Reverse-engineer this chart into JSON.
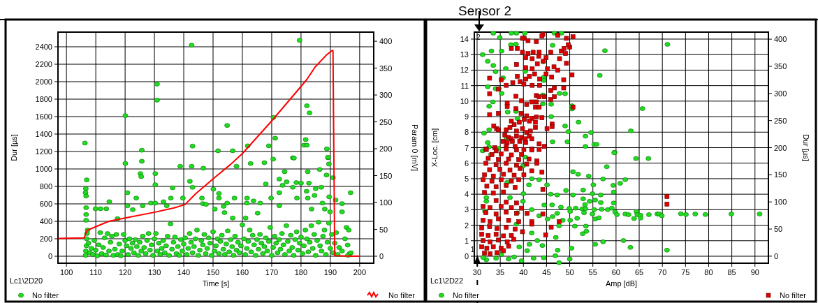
{
  "chart_data": [
    {
      "type": "scatter",
      "xlabel": "Time [s]",
      "ylabel": "Dur [µs]",
      "y2label": "Param 0 [mV]",
      "xlim": [
        97.1,
        204.8
      ],
      "ylim": [
        -80,
        2568
      ],
      "y2lim": [
        -13,
        417
      ],
      "xticks": [
        100,
        110,
        120,
        130,
        140,
        150,
        160,
        170,
        180,
        190,
        200
      ],
      "yticks": [
        0,
        200,
        400,
        600,
        800,
        1000,
        1200,
        1400,
        1600,
        1800,
        2000,
        2200,
        2400
      ],
      "y2ticks": [
        0,
        50,
        100,
        150,
        200,
        250,
        300,
        350,
        400
      ],
      "grid": true,
      "legend": "bottom",
      "annotations": [
        "Lc1\\2D20"
      ],
      "series": [
        {
          "name": "No filter",
          "type": "scatter",
          "marker": "circle",
          "color": "#1fdd1f",
          "x": [
            106.3,
            120.1,
            125.7,
            130.9,
            130.9,
            142.7,
            143,
            151.7,
            154.8,
            156.7,
            161.8,
            169,
            170.6,
            171.2,
            179.5,
            177.2,
            181,
            182,
            181.6,
            182,
            182.9,
            188.8,
            189.2,
            120.1,
            125.7,
            125.2,
            125.5,
            130.3,
            130.3,
            106.9,
            106.6,
            106.5,
            106.7,
            106.7,
            106.7,
            106.7,
            109.9,
            111.6,
            113.6,
            114.6,
            117.4,
            120.8,
            120.8,
            122.6,
            123.8,
            126,
            128.8,
            130.3,
            133.1,
            134.2,
            135.6,
            136.2,
            138.8,
            139.7,
            142.7,
            142.1,
            143,
            146.7,
            146.2,
            146.5,
            147.6,
            150.1,
            152,
            152,
            150.6,
            153.6,
            153.9,
            154.8,
            157.3,
            158,
            156.7,
            161.1,
            161.6,
            161.5,
            162.8,
            163.8,
            166.1,
            165.2,
            167.5,
            168,
            170.5,
            169.8,
            172.6,
            172.6,
            174.4,
            172.6,
            175.1,
            173.7,
            177.6,
            177.2,
            178.4,
            178.6,
            180,
            182.3,
            182.7,
            181.9,
            182.3,
            183.6,
            184.6,
            185,
            186.4,
            186.9,
            187.3,
            188.1,
            188.7,
            189.2,
            189.5,
            189.6,
            189.9,
            190.9,
            191.8,
            194,
            194,
            196.9,
            195.5,
            196.3,
            195.9,
            196.6,
            106.5,
            106.6,
            106.8,
            106.9,
            107,
            107.2,
            107.5,
            108,
            108.5,
            109,
            109.5,
            110,
            110.5,
            111,
            111.5,
            112,
            112.5,
            113,
            113.5,
            114,
            114.5,
            115,
            115.5,
            116,
            116.5,
            117,
            117.5,
            118,
            118.5,
            119,
            119.5,
            120,
            120.5,
            121,
            121.5,
            122,
            122.5,
            123,
            123.5,
            124,
            124.5,
            125,
            125.5,
            126,
            126.5,
            127,
            127.5,
            128,
            128.5,
            129,
            129.5,
            130,
            130.5,
            131,
            131.5,
            132,
            132.5,
            133,
            133.5,
            134,
            134.5,
            135,
            135.5,
            136,
            136.5,
            137,
            137.5,
            138,
            138.5,
            139,
            139.5,
            140,
            140.5,
            141,
            141.5,
            142,
            142.5,
            143,
            143.5,
            144,
            144.5,
            145,
            145.5,
            146,
            146.5,
            147,
            147.5,
            148,
            148.5,
            149,
            149.5,
            150,
            150.5,
            151,
            151.5,
            152,
            152.5,
            153,
            153.5,
            154,
            154.5,
            155,
            155.5,
            156,
            156.5,
            157,
            157.5,
            158,
            158.5,
            159,
            159.5,
            160,
            160.5,
            161,
            161.5,
            162,
            162.5,
            163,
            163.5,
            164,
            164.5,
            165,
            165.5,
            166,
            166.5,
            167,
            167.5,
            168,
            168.5,
            169,
            169.5,
            170,
            170.5,
            171,
            171.5,
            172,
            172.5,
            173,
            173.5,
            174,
            174.5,
            175,
            175.5,
            176,
            176.5,
            177,
            177.5,
            178,
            178.5,
            179,
            179.5,
            180,
            180.5,
            181,
            181.5,
            182,
            182.5,
            183,
            183.5,
            184,
            184.5,
            185,
            185.5,
            186,
            186.5,
            187,
            187.5,
            188,
            188.5,
            189,
            189.5,
            190,
            190.5,
            191,
            191.5,
            192,
            192.5,
            193,
            194,
            195,
            196,
            197
          ],
          "values": [
            1297,
            1611,
            1215,
            1973,
            1789,
            2419,
            1262,
            1209,
            1499,
            1209,
            1265,
            1265,
            1590,
            1353,
            2475,
            1128,
            1272,
            1272,
            1337,
            1724,
            1643,
            1231,
            1128,
            1063,
            1088,
            947,
            912,
            947,
            819,
            875,
            775,
            728,
            690,
            556,
            478,
            412,
            544,
            544,
            544,
            625,
            431,
            728,
            578,
            534,
            666,
            578,
            609,
            609,
            625,
            578,
            666,
            784,
            1031,
            666,
            1031,
            859,
            790,
            1009,
            666,
            603,
            594,
            769,
            719,
            666,
            541,
            572,
            500,
            609,
            666,
            1031,
            438,
            438,
            666,
            609,
            1063,
            634,
            609,
            494,
            1072,
            828,
            1113,
            666,
            578,
            728,
            969,
            884,
            853,
            813,
            1125,
            790,
            844,
            666,
            838,
            969,
            838,
            744,
            666,
            541,
            697,
            775,
            994,
            790,
            609,
            541,
            931,
            1134,
            1056,
            681,
            509,
            900,
            644,
            603,
            509,
            728,
            331,
            300,
            128,
            31,
            10,
            60,
            120,
            200,
            260,
            300,
            150,
            40,
            90,
            20,
            180,
            70,
            5,
            130,
            270,
            30,
            100,
            210,
            15,
            260,
            60,
            160,
            230,
            10,
            80,
            250,
            20,
            140,
            5,
            60,
            250,
            180,
            120,
            20,
            200,
            90,
            150,
            40,
            190,
            110,
            10,
            160,
            60,
            230,
            100,
            30,
            180,
            260,
            70,
            130,
            10,
            200,
            260,
            60,
            150,
            20,
            90,
            180,
            40,
            120,
            230,
            10,
            370,
            80,
            160,
            220,
            30,
            110,
            10,
            190,
            60,
            140,
            210,
            20,
            90,
            260,
            160,
            40,
            110,
            200,
            300,
            10,
            70,
            180,
            130,
            250,
            30,
            90,
            210,
            150,
            10,
            280,
            60,
            120,
            200,
            30,
            170,
            240,
            80,
            20,
            140,
            290,
            50,
            190,
            110,
            10,
            230,
            70,
            160,
            40,
            120,
            360,
            200,
            20,
            90,
            170,
            300,
            50,
            240,
            130,
            10,
            190,
            80,
            250,
            150,
            30,
            110,
            210,
            60,
            170,
            330,
            10,
            100,
            230,
            150,
            40,
            190,
            80,
            260,
            130,
            20,
            350,
            170,
            60,
            240,
            100,
            10,
            190,
            280,
            70,
            150,
            220,
            30,
            120,
            300,
            200,
            50,
            160,
            350,
            90,
            250,
            10,
            180,
            390,
            120,
            60,
            230,
            300,
            20,
            160,
            380,
            90,
            250,
            40,
            150,
            270,
            20,
            100,
            60,
            200,
            10,
            40
          ]
        },
        {
          "name": "No filter",
          "type": "line",
          "axis": "y2",
          "marker": "none",
          "color": "#ff0000",
          "x": [
            97.2,
            106,
            107,
            114.4,
            120,
            130.2,
            136.7,
            140.4,
            144,
            150,
            156,
            160,
            170.2,
            180,
            182,
            184.8,
            188.6,
            190.6,
            190.9,
            191.5,
            200
          ],
          "values": [
            33,
            34,
            48,
            65,
            71,
            82,
            90,
            96,
            116,
            144,
            171,
            191,
            253,
            316,
            329,
            352,
            374,
            383,
            382,
            1,
            0
          ]
        }
      ]
    },
    {
      "type": "scatter",
      "title": "Sensor 2",
      "xlabel": "Amp [dB]",
      "ylabel": "X-Loc. [cm]",
      "y2label": "Dur [µs]",
      "xlim": [
        29.4,
        92.9
      ],
      "ylim": [
        -0.45,
        14.45
      ],
      "y2lim": [
        -13,
        413
      ],
      "xticks": [
        30,
        35,
        40,
        45,
        50,
        55,
        60,
        65,
        70,
        75,
        80,
        85,
        90
      ],
      "yticks": [
        0,
        1,
        2,
        3,
        4,
        5,
        6,
        7,
        8,
        9,
        10,
        11,
        12,
        13,
        14
      ],
      "y2ticks": [
        0,
        50,
        100,
        150,
        200,
        250,
        300,
        350,
        400
      ],
      "grid": true,
      "legend": "bottom",
      "annotations": [
        "Lc1\\2D22",
        {
          "text": "1",
          "x": 30.2,
          "y": 0.35
        },
        "2"
      ],
      "series": [
        {
          "name": "No filter",
          "type": "scatter",
          "marker": "circle",
          "color": "#1fdd1f",
          "x": [
            33.5,
            31.2,
            33.1,
            35.3,
            32.3,
            33.5,
            34,
            36.2,
            35.6,
            32.3,
            34,
            34.7,
            32.6,
            33.4,
            35.3,
            37.3,
            38.4,
            40.3,
            37.4,
            34.9,
            38.5,
            44.3,
            44.4,
            44.4,
            46.3,
            46.7,
            48.2,
            47.8,
            49,
            46,
            46,
            44.2,
            50.5,
            50.5,
            51.9,
            49.7,
            49,
            54.6,
            53.4,
            55.3,
            55.8,
            53.4,
            49.5,
            46.3,
            36.4,
            32.6,
            31.5,
            32.3,
            32.6,
            38.4,
            38.7,
            36.6,
            40.4,
            44.2,
            56.5,
            57.6,
            63.2,
            65.7,
            71.1,
            59.7,
            59.6,
            64.3,
            67,
            58,
            50.7,
            51.8,
            54.1,
            57.2,
            62,
            60.9,
            55.1,
            59.4,
            59.5,
            56.7,
            54.9,
            52.9,
            50.7,
            49.2,
            47.3,
            45.9,
            45.1,
            43.4,
            41.2,
            40,
            44.5,
            46.2,
            48.1,
            49.9,
            51.3,
            52.7,
            53.4,
            55.3,
            56.9,
            58.2,
            59.1,
            59.5,
            54.3,
            52.9,
            53.3,
            55.5,
            56.7,
            59.8,
            60.2,
            62,
            62.7,
            64.4,
            64.6,
            65.3,
            65.3,
            63.9,
            67.1,
            68.9,
            69.3,
            69.9,
            74,
            75.1,
            77.1,
            79.3,
            84.9,
            91,
            54.9,
            55.5,
            56.3,
            53.1,
            51.6,
            50.1,
            47.3,
            46.3,
            45.2,
            43.4,
            41.8,
            50.1,
            48.5,
            47.7,
            51.1,
            53.5,
            53.6,
            52.8,
            47,
            41.8,
            43,
            44.1,
            41.3,
            39.1,
            40.8,
            47.4,
            50.4,
            55.5,
            57.2,
            61.6,
            63.1,
            71,
            46.9,
            44.4,
            42.2,
            50,
            47.7,
            39.6,
            36.8,
            34.1,
            32,
            35.2,
            38,
            31.3,
            32,
            32,
            31.7,
            31.2,
            33,
            34.6,
            36.5,
            37.1,
            38.7,
            39.9,
            40.4,
            41.8,
            38.5,
            39.9
          ],
          "values": [
            14.38,
            13.0,
            13.23,
            13.23,
            12.57,
            12.3,
            11.9,
            12.1,
            11.5,
            10.93,
            10.8,
            10.8,
            9.67,
            9.95,
            10.5,
            13.64,
            13.67,
            14.38,
            14.38,
            14.1,
            14.38,
            12.54,
            11.54,
            11.33,
            13.6,
            14.38,
            14.38,
            10.5,
            10.48,
            9.0,
            9.8,
            9.82,
            9.7,
            9.5,
            8.64,
            8.03,
            8.4,
            7.98,
            7.74,
            7.21,
            7.21,
            7.08,
            7.38,
            7.38,
            7.62,
            8.15,
            7.93,
            7.33,
            7.05,
            9.34,
            8.88,
            9.3,
            11.92,
            10.4,
            11.66,
            13.25,
            8.08,
            9.52,
            13.66,
            6.7,
            6.67,
            6.3,
            6.3,
            5.77,
            5.45,
            5.29,
            5.17,
            4.98,
            4.94,
            4.7,
            4.6,
            4.57,
            4.14,
            3.95,
            4.03,
            4.27,
            3.95,
            4.24,
            3.95,
            4.0,
            4.6,
            4.93,
            4.6,
            4.03,
            3.3,
            3.31,
            3.16,
            3.08,
            3.1,
            3.05,
            3.07,
            3.0,
            3.03,
            3.0,
            3.1,
            3.43,
            3.54,
            3.7,
            3.33,
            3.62,
            3.46,
            2.85,
            2.68,
            2.72,
            2.68,
            2.87,
            2.68,
            2.64,
            2.46,
            2.43,
            2.68,
            2.72,
            2.72,
            2.61,
            2.74,
            2.69,
            2.72,
            2.69,
            2.72,
            2.72,
            2.72,
            2.4,
            2.48,
            2.8,
            2.45,
            2.89,
            2.77,
            2.56,
            2.4,
            2.61,
            3.0,
            2.32,
            2.32,
            1.96,
            1.94,
            1.94,
            1.61,
            1.45,
            1.21,
            1.5,
            1.01,
            0.69,
            0.77,
            0.6,
            0.36,
            0.39,
            0.52,
            0.77,
            0.93,
            1.01,
            0.57,
            0.39,
            0.03,
            -0.1,
            -0.13,
            -0.18,
            -0.42,
            -0.29,
            -0.18,
            -0.13,
            -0.23,
            0.11,
            -0.05,
            -0.08,
            3.54,
            3.78,
            2.89,
            6.8,
            6.56,
            6.95,
            4.76,
            3.78,
            2.8,
            5.82,
            6.39,
            5.0,
            2.07,
            3.54
          ]
        },
        {
          "name": "No filter",
          "type": "scatter",
          "marker": "square",
          "color": "#dd0000",
          "x": [
            50.7,
            49.3,
            47.4,
            44.2,
            44,
            40.2,
            39.8,
            41,
            42.8,
            37.4,
            38.7,
            39.8,
            41,
            42.1,
            43.4,
            45.9,
            48.2,
            49.1,
            48.8,
            50,
            49.7,
            40.5,
            41.9,
            43.3,
            44.3,
            44.9,
            47.8,
            49.3,
            38.5,
            40.5,
            41.9,
            43,
            45.2,
            46.6,
            47.4,
            50.5,
            32.7,
            35.2,
            38.7,
            39.3,
            40.5,
            41.3,
            42.4,
            43.5,
            44.9,
            46.1,
            48.7,
            36.3,
            37.7,
            40.1,
            41.9,
            43.5,
            45.9,
            46.7,
            48.7,
            32.7,
            34.6,
            38.4,
            42.8,
            43.4,
            44.5,
            45.9,
            46.7,
            36.5,
            36.5,
            39.6,
            40.7,
            41.8,
            42.8,
            42.6,
            43.4,
            50.7,
            38.4,
            39.5,
            32.7,
            34.6,
            40.7,
            41.8,
            42.8,
            44,
            40.2,
            37.4,
            38,
            39.1,
            41.3,
            42.6,
            46.2,
            46.2,
            33.6,
            34.2,
            34.6,
            36.3,
            37.1,
            38.5,
            39.8,
            40.7,
            41.5,
            42.6,
            45.1,
            36,
            36.8,
            37.4,
            38.5,
            39.6,
            40.4,
            41.3,
            41.8,
            35.6,
            36.5,
            37.6,
            39.2,
            40.5,
            43.4,
            44.5,
            31.9,
            33.8,
            36.3,
            38.2,
            41.8,
            32,
            34.1,
            36.3,
            38.5,
            40.1,
            41.8,
            43.4,
            33.2,
            35.2,
            37.4,
            39.6,
            32.4,
            34.6,
            36.8,
            39,
            41.2,
            42.9,
            31.9,
            34.1,
            36.3,
            38.5,
            40.7,
            42.9,
            32.7,
            34.9,
            37.1,
            39.3,
            41.8,
            44,
            31.6,
            33.5,
            35.7,
            38,
            40.1,
            31.3,
            33.2,
            35.2,
            37.4,
            39,
            32.1,
            34.1,
            36.3,
            38.2,
            31.6,
            33.5,
            35.7,
            44.2,
            31.3,
            32.8,
            35.2,
            37.4,
            39.6,
            34.1,
            36.3,
            38.5,
            40.8,
            44.2,
            31.9,
            34.1,
            36.3,
            38.5,
            31.3,
            32.8,
            34.6,
            36.8,
            39,
            41.8,
            47.7,
            46,
            41.8,
            31,
            32.7,
            34.3,
            36.3,
            38.2,
            39.8,
            31,
            32.4,
            34.1,
            35.7,
            37.4,
            44.8,
            31.3,
            32.8,
            34.6,
            36.5,
            37.9,
            31,
            32.1,
            33.5,
            35.2,
            36.8,
            31.6,
            32.8,
            34.3,
            35.7,
            71,
            71
          ],
          "values": [
            14.15,
            14.05,
            14.25,
            14.31,
            14.2,
            14.05,
            14.05,
            13.9,
            13.84,
            13.4,
            13.4,
            13.15,
            13.07,
            13.15,
            13.15,
            13.15,
            13.23,
            13.07,
            13.4,
            13.48,
            13.64,
            12.8,
            12.74,
            12.9,
            12.57,
            12.8,
            12.74,
            12.44,
            12.36,
            12.16,
            12.08,
            12.41,
            12.08,
            12.21,
            12.0,
            11.7,
            11.48,
            11.38,
            11.6,
            11.26,
            11.43,
            11.6,
            11.75,
            11.43,
            11.75,
            11.56,
            11.38,
            11.02,
            11.18,
            11.1,
            11.02,
            11.02,
            10.69,
            10.85,
            10.85,
            10.48,
            10.77,
            10.31,
            10.36,
            10.28,
            10.28,
            10.11,
            10.28,
            9.87,
            9.66,
            10.03,
            9.79,
            9.95,
            9.95,
            9.62,
            9.62,
            9.62,
            9.51,
            9.21,
            9.13,
            9.21,
            9.05,
            8.89,
            8.97,
            8.93,
            8.82,
            8.72,
            8.48,
            8.64,
            8.72,
            8.64,
            8.52,
            8.36,
            8.39,
            8.23,
            8.15,
            8.15,
            8.31,
            8.07,
            8.23,
            7.98,
            8.07,
            8.31,
            8.23,
            7.82,
            7.66,
            7.57,
            7.74,
            7.66,
            7.57,
            7.74,
            7.57,
            7.41,
            7.33,
            7.41,
            7.41,
            7.33,
            7.25,
            7.08,
            6.92,
            7.0,
            7.08,
            7.08,
            6.92,
            6.88,
            6.8,
            6.92,
            6.85,
            6.88,
            6.85,
            6.88,
            6.56,
            6.59,
            6.53,
            6.56,
            6.31,
            6.23,
            6.26,
            6.23,
            6.26,
            6.15,
            5.99,
            5.91,
            5.99,
            5.87,
            5.94,
            5.99,
            5.58,
            5.61,
            5.55,
            5.66,
            5.5,
            5.42,
            5.25,
            5.17,
            5.29,
            5.22,
            5.25,
            4.93,
            4.85,
            4.93,
            4.85,
            4.93,
            4.52,
            4.47,
            4.57,
            4.44,
            4.11,
            4.08,
            4.14,
            4.31,
            3.21,
            3.13,
            3.21,
            3.13,
            3.1,
            3.59,
            3.49,
            3.43,
            2.77,
            2.72,
            2.81,
            2.72,
            2.84,
            2.77,
            2.32,
            2.23,
            2.4,
            2.32,
            2.23,
            2.23,
            2.23,
            1.88,
            2.07,
            1.83,
            1.91,
            1.79,
            1.86,
            1.75,
            1.58,
            1.42,
            1.34,
            1.42,
            1.31,
            1.34,
            1.37,
            1.01,
            0.93,
            1.04,
            0.93,
            1.09,
            0.6,
            0.52,
            0.6,
            0.52,
            0.65,
            0.2,
            0.16,
            0.23,
            0.36,
            3.85,
            3.36
          ]
        }
      ]
    }
  ]
}
